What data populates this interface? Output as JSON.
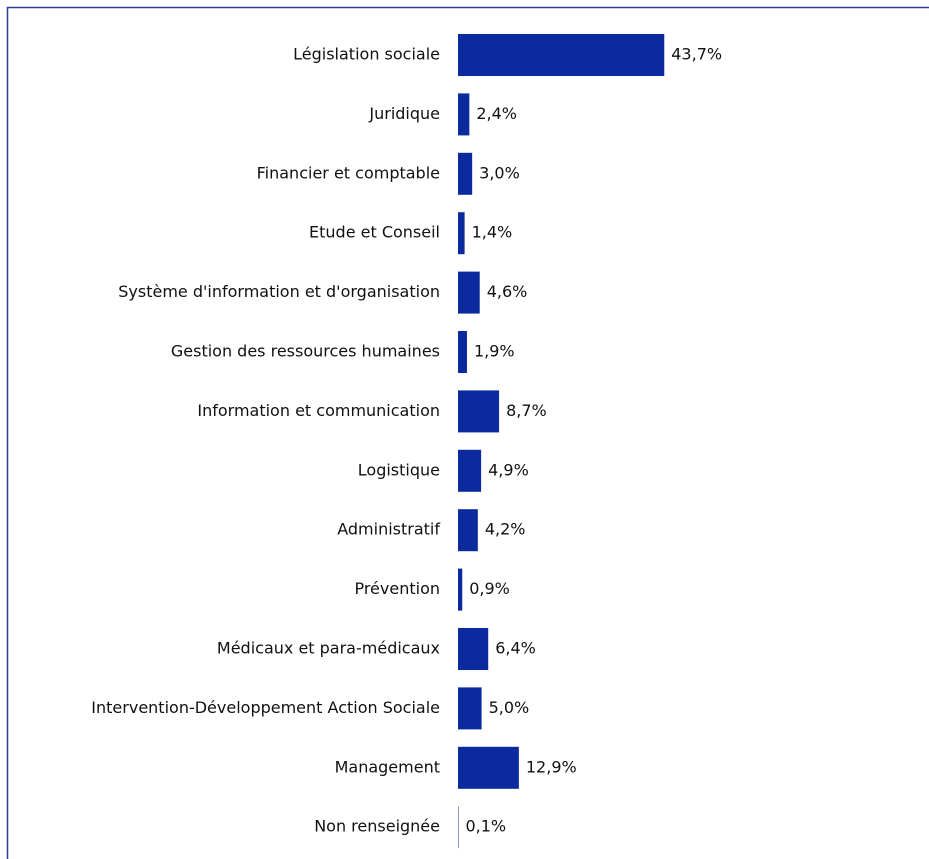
{
  "chart_data": {
    "type": "bar",
    "orientation": "horizontal",
    "color": "#0b2a9e",
    "categories": [
      "Législation sociale",
      "Juridique",
      "Financier et comptable",
      "Etude et Conseil",
      "Système d'information et d'organisation",
      "Gestion des ressources humaines",
      "Information et communication",
      "Logistique",
      "Administratif",
      "Prévention",
      "Médicaux et para-médicaux",
      "Intervention-Développement Action Sociale",
      "Management",
      "Non renseignée"
    ],
    "values": [
      43.7,
      2.4,
      3.0,
      1.4,
      4.6,
      1.9,
      8.7,
      4.9,
      4.2,
      0.9,
      6.4,
      5.0,
      12.9,
      0.1
    ],
    "value_labels": [
      "43,7%",
      "2,4%",
      "3,0%",
      "1,4%",
      "4,6%",
      "1,9%",
      "8,7%",
      "4,9%",
      "4,2%",
      "0,9%",
      "6,4%",
      "5,0%",
      "12,9%",
      "0,1%"
    ]
  }
}
